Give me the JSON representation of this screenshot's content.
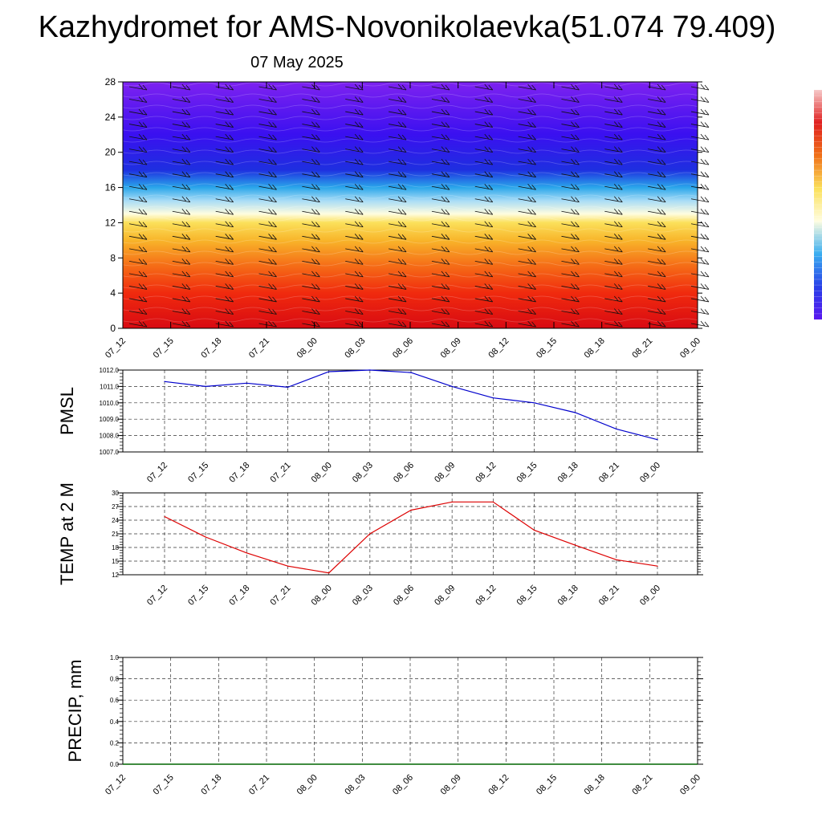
{
  "header": {
    "title": "Kazhydromet for AMS-Novonikolaevka(51.074 79.409)",
    "subtitle": "07 May 2025"
  },
  "chart_data": [
    {
      "type": "heatmap",
      "title": "",
      "x_ticks": [
        "07_12",
        "07_15",
        "07_18",
        "07_21",
        "08_00",
        "08_03",
        "08_06",
        "08_09",
        "08_12",
        "08_15",
        "08_18",
        "08_21",
        "09_00"
      ],
      "y_ticks": [
        0,
        4,
        8,
        12,
        16,
        20,
        24,
        28
      ],
      "ylim": [
        0,
        28
      ],
      "color_stops": [
        {
          "value": 0,
          "color": "#d80a12"
        },
        {
          "value": 4,
          "color": "#f02a0e"
        },
        {
          "value": 7,
          "color": "#f56a16"
        },
        {
          "value": 10,
          "color": "#f8b52a"
        },
        {
          "value": 12,
          "color": "#fbe05a"
        },
        {
          "value": 13,
          "color": "#fffde0"
        },
        {
          "value": 14.5,
          "color": "#a8dcf6"
        },
        {
          "value": 16,
          "color": "#2aa6ea"
        },
        {
          "value": 18,
          "color": "#1e2fe0"
        },
        {
          "value": 22,
          "color": "#3a10f0"
        },
        {
          "value": 28,
          "color": "#7e22f0"
        }
      ],
      "colorbar": {
        "stops": [
          "#f6c8c8",
          "#e02020",
          "#f07018",
          "#fbe05a",
          "#fffde0",
          "#3aaef0",
          "#2840e8",
          "#5a18f0"
        ]
      }
    },
    {
      "type": "line",
      "ylabel": "PMSL",
      "x": [
        "07_12",
        "07_15",
        "07_18",
        "07_21",
        "08_00",
        "08_03",
        "08_06",
        "08_09",
        "08_12",
        "08_15",
        "08_18",
        "08_21",
        "09_00"
      ],
      "y_ticks": [
        "1007.0",
        "1008.0",
        "1009.0",
        "1010.0",
        "1011.0",
        "1012.0"
      ],
      "ylim": [
        1007,
        1012
      ],
      "series": [
        {
          "color": "#0000cc",
          "values": [
            1011.3,
            1011.0,
            1011.2,
            1010.95,
            1011.9,
            1012.0,
            1011.85,
            1011.0,
            1010.3,
            1010.0,
            1009.4,
            1008.4,
            1007.75
          ]
        }
      ],
      "grid": true
    },
    {
      "type": "line",
      "ylabel": "TEMP at 2 M",
      "x": [
        "07_12",
        "07_15",
        "07_18",
        "07_21",
        "08_00",
        "08_03",
        "08_06",
        "08_09",
        "08_12",
        "08_15",
        "08_18",
        "08_21",
        "09_00"
      ],
      "y_ticks": [
        "12",
        "15",
        "18",
        "21",
        "24",
        "27",
        "30"
      ],
      "ylim": [
        12,
        30
      ],
      "series": [
        {
          "color": "#dd0000",
          "values": [
            24.8,
            20.3,
            16.8,
            13.9,
            12.4,
            21.0,
            26.2,
            28.0,
            28.0,
            21.8,
            18.5,
            15.3,
            13.9
          ]
        }
      ],
      "grid": true
    },
    {
      "type": "line",
      "ylabel": "PRECIP, mm",
      "x": [
        "07_12",
        "07_15",
        "07_18",
        "07_21",
        "08_00",
        "08_03",
        "08_06",
        "08_09",
        "08_12",
        "08_15",
        "08_18",
        "08_21",
        "09_00"
      ],
      "y_ticks": [
        "0.0",
        "0.2",
        "0.4",
        "0.6",
        "0.8",
        "1.0"
      ],
      "ylim": [
        0,
        1
      ],
      "series": [
        {
          "color": "#006600",
          "values": [
            0,
            0,
            0,
            0,
            0,
            0,
            0,
            0,
            0,
            0,
            0,
            0,
            0
          ]
        }
      ],
      "grid": true
    }
  ]
}
